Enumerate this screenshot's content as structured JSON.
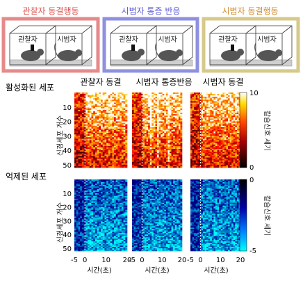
{
  "panels": [
    {
      "title": "관찰자 동결행동",
      "color": "#e6898a",
      "titleColor": "#d9534f",
      "labels": [
        "관찰자",
        "시범자"
      ]
    },
    {
      "title": "시범자 통증 반응",
      "color": "#8f90df",
      "titleColor": "#5b5bd6",
      "labels": [
        "관찰자",
        "시범자"
      ]
    },
    {
      "title": "시범자 동결행동",
      "color": "#d6c98a",
      "titleColor": "#d08a2e",
      "labels": [
        "관찰자",
        "시범자"
      ]
    }
  ],
  "row_titles": {
    "activated": "활성화된 세포",
    "suppressed": "억제된 세포"
  },
  "col_titles": [
    "관찰자 동결",
    "시범자 통증반응",
    "시범자 동결"
  ],
  "y_axis_label": "신경세포 개수",
  "y_ticks": [
    "10",
    "20",
    "30",
    "40",
    "50"
  ],
  "x_ticks": [
    "-5",
    "0",
    "10",
    "20"
  ],
  "x_axis_label": "시간(초)",
  "colorbar_top": {
    "max": "10",
    "min": "0",
    "label": "칼슘신호 세기"
  },
  "colorbar_bottom": {
    "max": "0",
    "min": "-5",
    "label": "칼슘신호 세기"
  },
  "colors": {
    "hot_high": "#ffffff",
    "hot_mid": "#ff4400",
    "hot_low": "#000000",
    "cool_low": "#00ffff",
    "cool_mid": "#0000cc",
    "cool_high": "#000000"
  }
}
